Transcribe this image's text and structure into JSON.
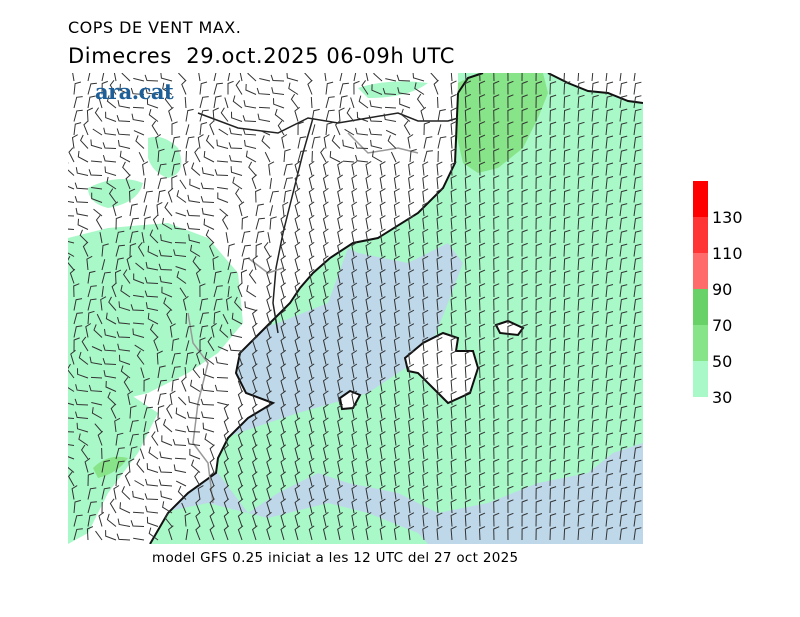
{
  "header": {
    "title": "COPS DE VENT MAX.",
    "subtitle": "Dimecres  29.oct.2025 06-09h UTC"
  },
  "logo": "ara.cat",
  "footer": "model GFS 0.25 iniciat a les 12 UTC del 27 oct 2025",
  "map": {
    "colors": {
      "sea": "#bed8ea",
      "land": "#ffffff",
      "coast": "#111111",
      "border": "#999999"
    }
  },
  "legend": {
    "labels": [
      "130",
      "110",
      "90",
      "70",
      "50",
      "30"
    ],
    "bands": [
      {
        "range": "130+",
        "color": "#ff0000"
      },
      {
        "range": "110-130",
        "color": "#ff3535"
      },
      {
        "range": "90-110",
        "color": "#ff6b6b"
      },
      {
        "range": "70-90",
        "color": "#68d268"
      },
      {
        "range": "50-70",
        "color": "#88e488"
      },
      {
        "range": "30-50",
        "color": "#a8f8c8"
      }
    ]
  }
}
